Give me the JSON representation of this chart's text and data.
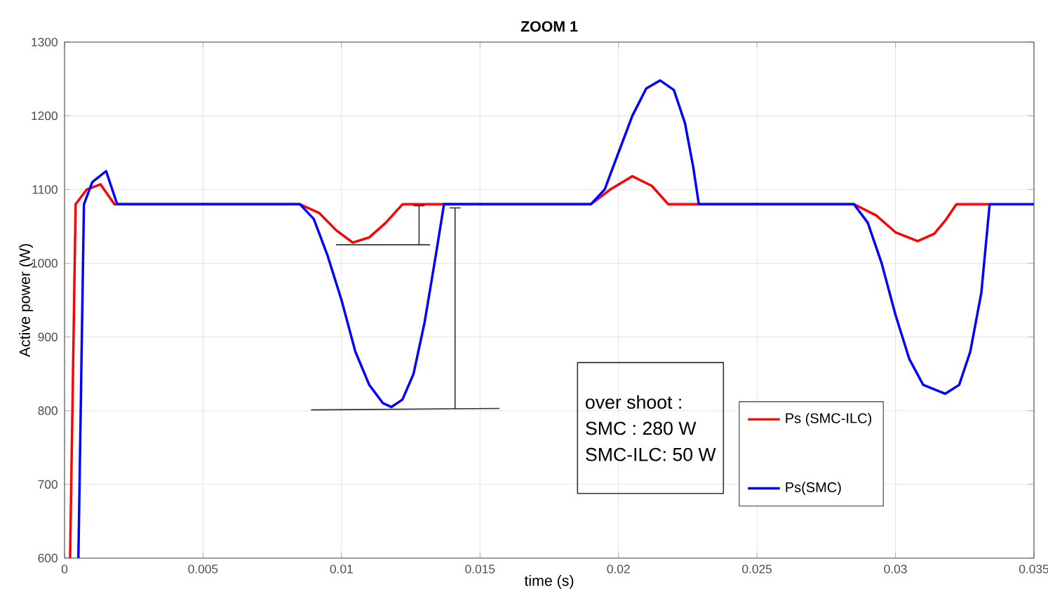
{
  "chart_data": {
    "type": "line",
    "title": "ZOOM 1",
    "xlabel": "time (s)",
    "ylabel": "Active power (W)",
    "xlim": [
      0,
      0.035
    ],
    "ylim": [
      600,
      1300
    ],
    "xticks": [
      0,
      0.005,
      0.01,
      0.015,
      0.02,
      0.025,
      0.03,
      0.035
    ],
    "yticks": [
      600,
      700,
      800,
      900,
      1000,
      1100,
      1200,
      1300
    ],
    "grid": true,
    "legend": "bottom right",
    "marker": "none",
    "line_style": "solid",
    "annotations": [
      "over shoot :",
      "SMC : 280 W",
      "SMC-ILC: 50 W"
    ],
    "series": [
      {
        "name": "Ps (SMC-ILC)",
        "color": "#ff0000",
        "x": [
          0.0002,
          0.0004,
          0.0008,
          0.0013,
          0.0018,
          0.0085,
          0.0092,
          0.0098,
          0.0104,
          0.011,
          0.0116,
          0.0122,
          0.019,
          0.0197,
          0.0205,
          0.0212,
          0.0218,
          0.0285,
          0.0293,
          0.03,
          0.0308,
          0.0314,
          0.0318,
          0.0322,
          0.0334
        ],
        "values": [
          600,
          1080,
          1100,
          1107,
          1080,
          1080,
          1068,
          1045,
          1028,
          1035,
          1055,
          1080,
          1080,
          1100,
          1118,
          1105,
          1080,
          1080,
          1065,
          1042,
          1030,
          1040,
          1058,
          1080,
          1080
        ]
      },
      {
        "name": "Ps(SMC)",
        "color": "#0000ff",
        "x": [
          0.0005,
          0.0007,
          0.001,
          0.0015,
          0.0019,
          0.0085,
          0.009,
          0.0095,
          0.01,
          0.0105,
          0.011,
          0.0115,
          0.0118,
          0.0122,
          0.0126,
          0.013,
          0.0134,
          0.0137,
          0.019,
          0.0195,
          0.02,
          0.0205,
          0.021,
          0.0215,
          0.022,
          0.0224,
          0.0227,
          0.0229,
          0.0285,
          0.029,
          0.0295,
          0.03,
          0.0305,
          0.031,
          0.0318,
          0.0323,
          0.0327,
          0.0331,
          0.0334,
          0.035
        ],
        "values": [
          600,
          1080,
          1110,
          1125,
          1080,
          1080,
          1060,
          1010,
          950,
          880,
          835,
          810,
          805,
          815,
          850,
          920,
          1010,
          1080,
          1080,
          1100,
          1150,
          1200,
          1237,
          1248,
          1235,
          1190,
          1130,
          1080,
          1080,
          1055,
          1000,
          930,
          870,
          835,
          823,
          835,
          880,
          960,
          1080,
          1080
        ]
      }
    ]
  }
}
